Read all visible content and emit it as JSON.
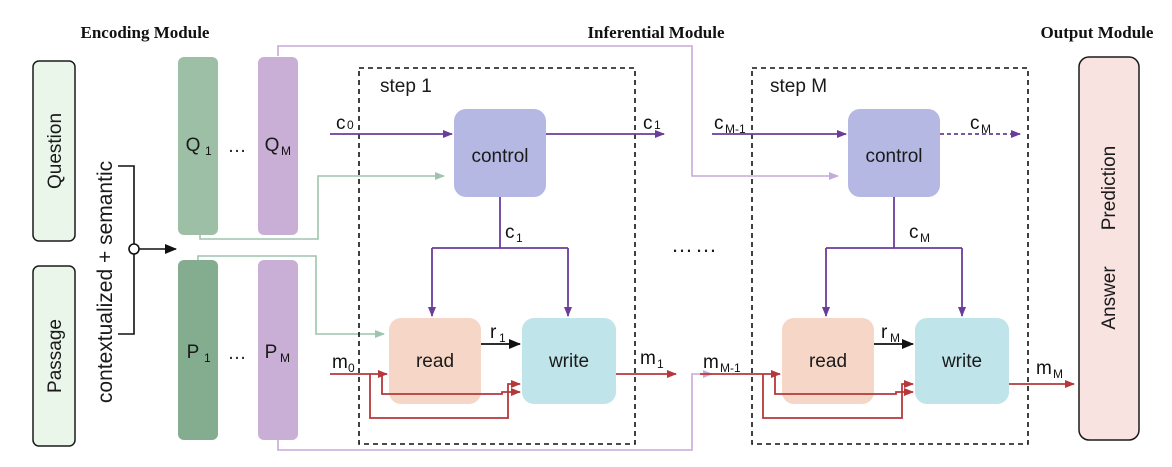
{
  "headers": {
    "encoding": "Encoding Module",
    "inferential": "Inferential Module",
    "output": "Output Module"
  },
  "inputs": {
    "question": "Question",
    "passage": "Passage",
    "encoder_label": "contextualized + semantic"
  },
  "encoders": {
    "q1_main": "Q",
    "q1_sub": "1",
    "qm_main": "Q",
    "qm_sub": "M",
    "p1_main": "P",
    "p1_sub": "1",
    "pm_main": "P",
    "pm_sub": "M",
    "ellipsis": "…"
  },
  "steps": {
    "first": "step 1",
    "last": "step M",
    "between": "……"
  },
  "units": {
    "control": "control",
    "read": "read",
    "write": "write"
  },
  "variables": {
    "c0_main": "c",
    "c0_sub": "0",
    "c1_main": "c",
    "c1_sub": "1",
    "cm1_main": "c",
    "cm1_sub": "M-1",
    "cm_main": "c",
    "cm_sub": "M",
    "m0_main": "m",
    "m0_sub": "0",
    "m1_main": "m",
    "m1_sub": "1",
    "mm1_main": "m",
    "mm1_sub": "M-1",
    "mm_main": "m",
    "mm_sub": "M",
    "r1_main": "r",
    "r1_sub": "1",
    "rm_main": "r",
    "rm_sub": "M"
  },
  "output": {
    "line1": "Answer",
    "line2": "Prediction"
  },
  "colors": {
    "encoder_q": "#9dbfa6",
    "encoder_qm": "#c9aed6",
    "encoder_p": "#84ad8f",
    "control_fill": "#b4b8e2",
    "read_fill": "#f6d6c6",
    "write_fill": "#bfe4e9",
    "output_fill": "#f8e3e1",
    "input_fill": "#eaf6e9",
    "control_arrow": "#6b3d9a",
    "memory_arrow": "#b5383b",
    "green_link": "#9fc4ad",
    "purple_link": "#c6a9d8"
  }
}
